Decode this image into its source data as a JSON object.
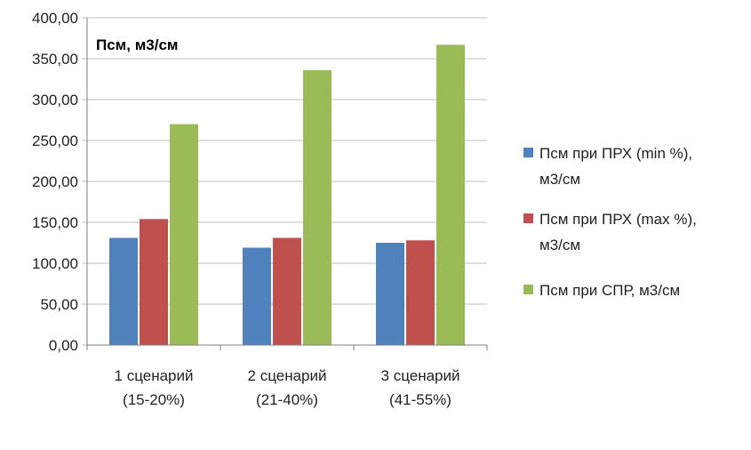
{
  "chart_data": {
    "type": "bar",
    "title": "Псм, м3/см",
    "categories": [
      [
        "1 сценарий",
        "(15-20%)"
      ],
      [
        "2 сценарий",
        "(21-40%)"
      ],
      [
        "3 сценарий",
        "(41-55%)"
      ]
    ],
    "series": [
      {
        "name": [
          "Псм при ПРХ (min %),",
          "м3/см"
        ],
        "color": "#4f81bd",
        "values": [
          131,
          119,
          125
        ]
      },
      {
        "name": [
          "Псм при ПРХ (max %),",
          "м3/см"
        ],
        "color": "#c0504d",
        "values": [
          154,
          131,
          128
        ]
      },
      {
        "name": [
          "Псм при СПР, м3/см"
        ],
        "color": "#9bbb59",
        "values": [
          270,
          336,
          367
        ]
      }
    ],
    "ylim": [
      0,
      400
    ],
    "yticks": [
      "0,00",
      "50,00",
      "100,00",
      "150,00",
      "200,00",
      "250,00",
      "300,00",
      "350,00",
      "400,00"
    ],
    "ytick_values": [
      0,
      50,
      100,
      150,
      200,
      250,
      300,
      350,
      400
    ],
    "grid": true,
    "legend_position": "right"
  }
}
